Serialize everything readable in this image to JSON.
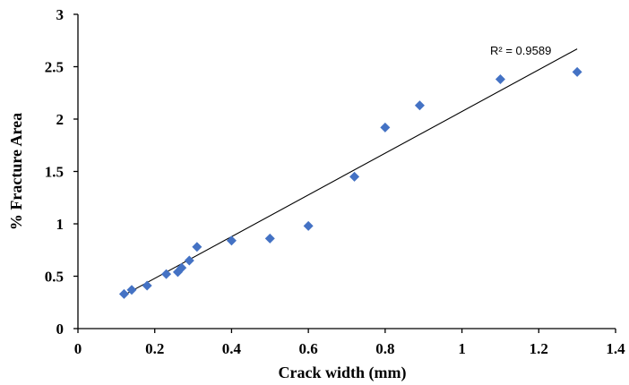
{
  "chart_data": {
    "type": "scatter",
    "xlabel": "Crack width  (mm)",
    "ylabel": "% Fracture  Area",
    "xlim": [
      0,
      1.4
    ],
    "ylim": [
      0,
      3
    ],
    "xticks": [
      0,
      0.2,
      0.4,
      0.6,
      0.8,
      1,
      1.2,
      1.4
    ],
    "xtick_labels": [
      "0",
      "0.2",
      "0.4",
      "0.6",
      "0.8",
      "1",
      "1.2",
      "1.4"
    ],
    "yticks": [
      0,
      0.5,
      1,
      1.5,
      2,
      2.5,
      3
    ],
    "ytick_labels": [
      "0",
      "0.5",
      "1",
      "1.5",
      "2",
      "2.5",
      "3"
    ],
    "grid": false,
    "legend": "none",
    "marker_color": "#4472C4",
    "points": [
      {
        "x": 0.12,
        "y": 0.33
      },
      {
        "x": 0.14,
        "y": 0.37
      },
      {
        "x": 0.18,
        "y": 0.41
      },
      {
        "x": 0.23,
        "y": 0.52
      },
      {
        "x": 0.26,
        "y": 0.54
      },
      {
        "x": 0.27,
        "y": 0.58
      },
      {
        "x": 0.29,
        "y": 0.65
      },
      {
        "x": 0.31,
        "y": 0.78
      },
      {
        "x": 0.4,
        "y": 0.84
      },
      {
        "x": 0.5,
        "y": 0.86
      },
      {
        "x": 0.6,
        "y": 0.98
      },
      {
        "x": 0.72,
        "y": 1.45
      },
      {
        "x": 0.8,
        "y": 1.92
      },
      {
        "x": 0.89,
        "y": 2.13
      },
      {
        "x": 1.1,
        "y": 2.38
      },
      {
        "x": 1.3,
        "y": 2.45
      }
    ],
    "trendline": {
      "x_start": 0.12,
      "y_start": 0.32,
      "x_end": 1.3,
      "y_end": 2.67
    },
    "annotation": "R² = 0.9589"
  }
}
